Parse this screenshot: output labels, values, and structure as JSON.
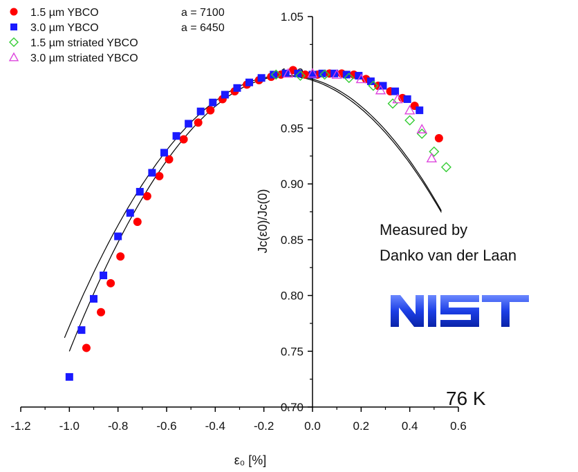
{
  "chart_data": {
    "type": "scatter",
    "xlabel": "ε₀ [%]",
    "ylabel": "Jc(ε0)/Jc(0)",
    "xlim": [
      -1.2,
      0.6
    ],
    "ylim": [
      0.7,
      1.05
    ],
    "x_ticks": [
      "-1.2",
      "-1.0",
      "-0.8",
      "-0.6",
      "-0.4",
      "-0.2",
      "0.0",
      "0.2",
      "0.4",
      "0.6"
    ],
    "y_ticks": [
      "0.70",
      "0.75",
      "0.80",
      "0.85",
      "0.90",
      "0.95",
      "1.00",
      "1.05"
    ],
    "legend_position": "top-left",
    "series": [
      {
        "name": "1.5 µm YBCO",
        "marker": "circle",
        "color": "#ff0000",
        "fill": true,
        "fit_a": "a = 7100",
        "x": [
          -0.93,
          -0.87,
          -0.83,
          -0.79,
          -0.72,
          -0.68,
          -0.63,
          -0.59,
          -0.53,
          -0.47,
          -0.42,
          -0.37,
          -0.32,
          -0.27,
          -0.22,
          -0.17,
          -0.13,
          -0.08,
          -0.03,
          0.02,
          0.07,
          0.12,
          0.17,
          0.22,
          0.27,
          0.32,
          0.37,
          0.42,
          0.52
        ],
        "y": [
          0.753,
          0.785,
          0.811,
          0.835,
          0.866,
          0.889,
          0.907,
          0.922,
          0.94,
          0.955,
          0.966,
          0.976,
          0.983,
          0.989,
          0.993,
          0.996,
          0.998,
          1.002,
          0.998,
          0.998,
          0.999,
          0.999,
          0.998,
          0.994,
          0.988,
          0.983,
          0.977,
          0.97,
          0.941
        ]
      },
      {
        "name": "3.0 µm YBCO",
        "marker": "square",
        "color": "#1a1aff",
        "fill": true,
        "fit_a": "a = 6450",
        "x": [
          -1.0,
          -0.95,
          -0.9,
          -0.86,
          -0.8,
          -0.75,
          -0.71,
          -0.66,
          -0.61,
          -0.56,
          -0.51,
          -0.46,
          -0.41,
          -0.36,
          -0.31,
          -0.26,
          -0.21,
          -0.16,
          -0.11,
          -0.06,
          0.0,
          0.04,
          0.09,
          0.14,
          0.19,
          0.24,
          0.29,
          0.34,
          0.39,
          0.44
        ],
        "y": [
          0.727,
          0.769,
          0.797,
          0.818,
          0.853,
          0.874,
          0.893,
          0.91,
          0.928,
          0.943,
          0.954,
          0.965,
          0.973,
          0.98,
          0.986,
          0.991,
          0.995,
          0.998,
          0.999,
          0.999,
          0.998,
          0.999,
          0.999,
          0.998,
          0.997,
          0.992,
          0.988,
          0.983,
          0.976,
          0.966
        ]
      },
      {
        "name": "1.5 µm striated YBCO",
        "marker": "diamond",
        "color": "#33cc33",
        "fill": false,
        "x": [
          -0.15,
          -0.05,
          0.05,
          0.15,
          0.25,
          0.33,
          0.4,
          0.45,
          0.5,
          0.55
        ],
        "y": [
          0.998,
          0.997,
          0.998,
          0.995,
          0.988,
          0.972,
          0.957,
          0.945,
          0.929,
          0.915
        ]
      },
      {
        "name": "3.0 µm striated YBCO",
        "marker": "triangle",
        "color": "#dd44dd",
        "fill": false,
        "x": [
          -0.1,
          0.0,
          0.1,
          0.2,
          0.28,
          0.35,
          0.4,
          0.45,
          0.49
        ],
        "y": [
          0.999,
          0.999,
          0.998,
          0.994,
          0.984,
          0.976,
          0.966,
          0.949,
          0.923
        ]
      }
    ],
    "fit_curves": [
      {
        "a": 7100,
        "x_peak": -0.1,
        "x_range": [
          -1.0,
          0.53
        ]
      },
      {
        "a": 6450,
        "x_peak": -0.1,
        "x_range": [
          -1.02,
          0.53
        ]
      }
    ],
    "annotations": [
      "Measured by",
      "Danko van der Laan",
      "76 K"
    ],
    "logo": "NIST"
  },
  "notes": {
    "measured_line1": "Measured by",
    "measured_line2": "Danko van der Laan",
    "temperature": "76 K"
  }
}
